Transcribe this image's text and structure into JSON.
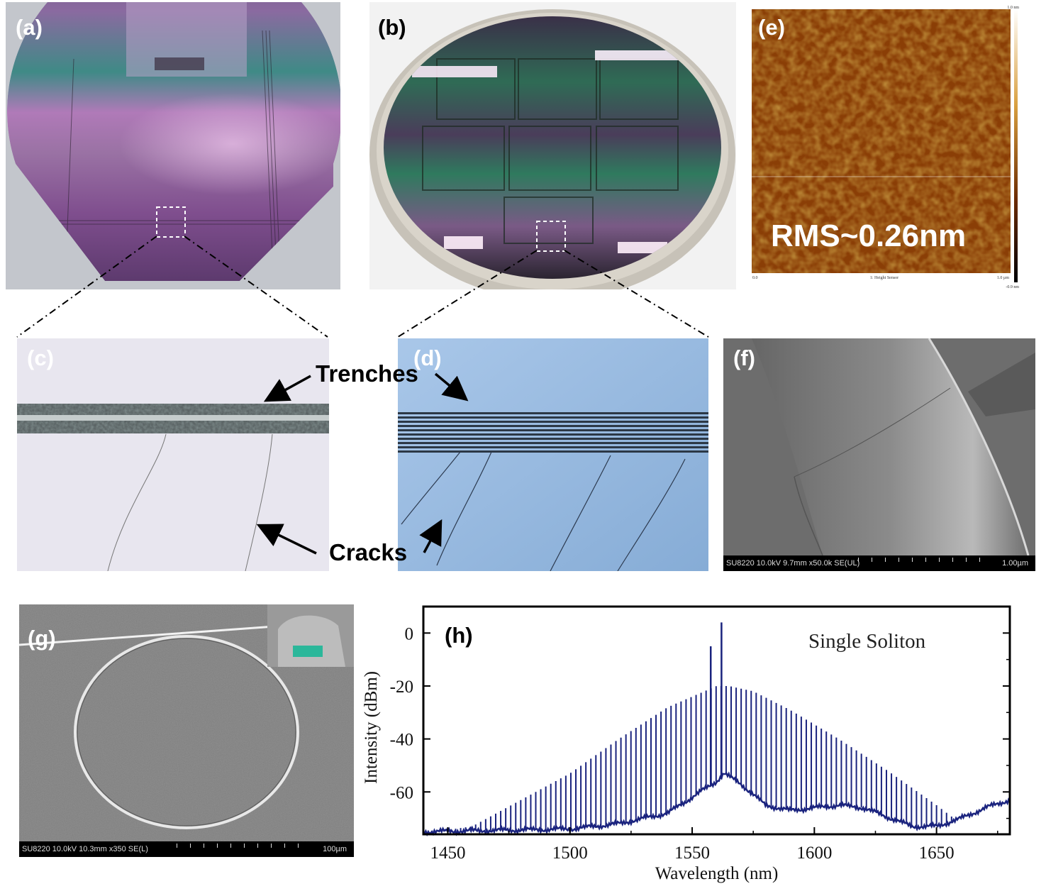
{
  "panels": {
    "a": {
      "label": "(a)"
    },
    "b": {
      "label": "(b)"
    },
    "c": {
      "label": "(c)"
    },
    "d": {
      "label": "(d)"
    },
    "e": {
      "label": "(e)",
      "rms_text": "RMS~0.26nm",
      "colorbar_top": "1.0 nm",
      "colorbar_bottom": "-0.9 nm",
      "axis_left": "0.0",
      "axis_right": "1.0 µm",
      "axis_title": "1: Height Sensor"
    },
    "f": {
      "label": "(f)",
      "sem_info": "SU8220 10.0kV 9.7mm x50.0k SE(UL)",
      "scale_text": "1.00µm"
    },
    "g": {
      "label": "(g)",
      "sem_info": "SU8220 10.0kV 10.3mm x350 SE(L)",
      "scale_text": "100µm"
    },
    "h": {
      "label": "(h)"
    }
  },
  "annotations": {
    "trenches": "Trenches",
    "cracks": "Cracks"
  },
  "chart_data": {
    "type": "line",
    "annotation": "Single Soliton",
    "xlabel": "Wavelength (nm)",
    "ylabel": "Intensity (dBm)",
    "xlim": [
      1440,
      1680
    ],
    "ylim": [
      -76,
      10
    ],
    "x_ticks": [
      1450,
      1500,
      1550,
      1600,
      1650
    ],
    "y_ticks": [
      0,
      -20,
      -40,
      -60
    ],
    "color": "#1a237e",
    "series": [
      {
        "kind": "comb_lines",
        "line_spacing_nm": 2.05,
        "envelope": [
          [
            1445,
            -75
          ],
          [
            1460,
            -73
          ],
          [
            1480,
            -63
          ],
          [
            1500,
            -53
          ],
          [
            1520,
            -40
          ],
          [
            1540,
            -28
          ],
          [
            1555,
            -22
          ],
          [
            1560,
            -20
          ],
          [
            1565,
            -20
          ],
          [
            1575,
            -22
          ],
          [
            1590,
            -29
          ],
          [
            1610,
            -40
          ],
          [
            1630,
            -52
          ],
          [
            1650,
            -65
          ],
          [
            1660,
            -72
          ]
        ],
        "pump_lines": [
          [
            1557.6,
            -5
          ],
          [
            1562.0,
            4
          ]
        ]
      },
      {
        "kind": "noise_floor",
        "points": [
          [
            1440,
            -75
          ],
          [
            1500,
            -74
          ],
          [
            1520,
            -72
          ],
          [
            1540,
            -68
          ],
          [
            1550,
            -62
          ],
          [
            1560,
            -56
          ],
          [
            1563,
            -53
          ],
          [
            1570,
            -57
          ],
          [
            1580,
            -65
          ],
          [
            1590,
            -67
          ],
          [
            1610,
            -65
          ],
          [
            1620,
            -66
          ],
          [
            1640,
            -73
          ],
          [
            1650,
            -73
          ],
          [
            1660,
            -70
          ],
          [
            1670,
            -66
          ],
          [
            1680,
            -63
          ]
        ]
      }
    ]
  }
}
